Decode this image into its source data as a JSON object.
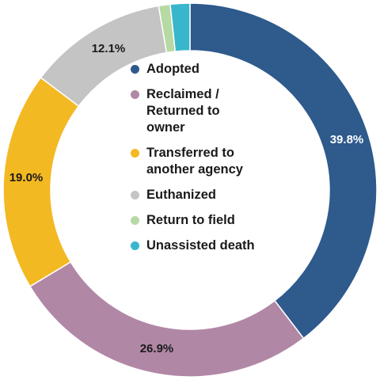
{
  "chart_data": {
    "type": "pie",
    "variant": "donut",
    "title": "",
    "start_angle_deg": 0,
    "direction": "clockwise",
    "legend_position": "center",
    "slices": [
      {
        "name": "Adopted",
        "value": 39.8,
        "label": "39.8%",
        "color": "#2e5a8c",
        "label_color": "#ffffff"
      },
      {
        "name": "Reclaimed / Returned to owner",
        "value": 26.9,
        "label": "26.9%",
        "color": "#b187a6",
        "label_color": "#1a1a1a"
      },
      {
        "name": "Transferred to another agency",
        "value": 19.0,
        "label": "19.0%",
        "color": "#f3b923",
        "label_color": "#1a1a1a"
      },
      {
        "name": "Euthanized",
        "value": 12.1,
        "label": "12.1%",
        "color": "#c4c4c4",
        "label_color": "#1a1a1a"
      },
      {
        "name": "Return to field",
        "value": 1.0,
        "label": "",
        "color": "#b7d9a4",
        "label_color": "#1a1a1a"
      },
      {
        "name": "Unassisted death",
        "value": 1.7,
        "label": "",
        "color": "#39b6cc",
        "label_color": "#1a1a1a"
      }
    ],
    "legend": [
      {
        "lines": [
          "Adopted"
        ],
        "color": "#2e5a8c"
      },
      {
        "lines": [
          "Reclaimed /",
          "Returned to",
          "owner"
        ],
        "color": "#b187a6"
      },
      {
        "lines": [
          "Transferred to",
          "another agency"
        ],
        "color": "#f3b923"
      },
      {
        "lines": [
          "Euthanized"
        ],
        "color": "#c4c4c4"
      },
      {
        "lines": [
          "Return to field"
        ],
        "color": "#b7d9a4"
      },
      {
        "lines": [
          "Unassisted death"
        ],
        "color": "#39b6cc"
      }
    ]
  }
}
